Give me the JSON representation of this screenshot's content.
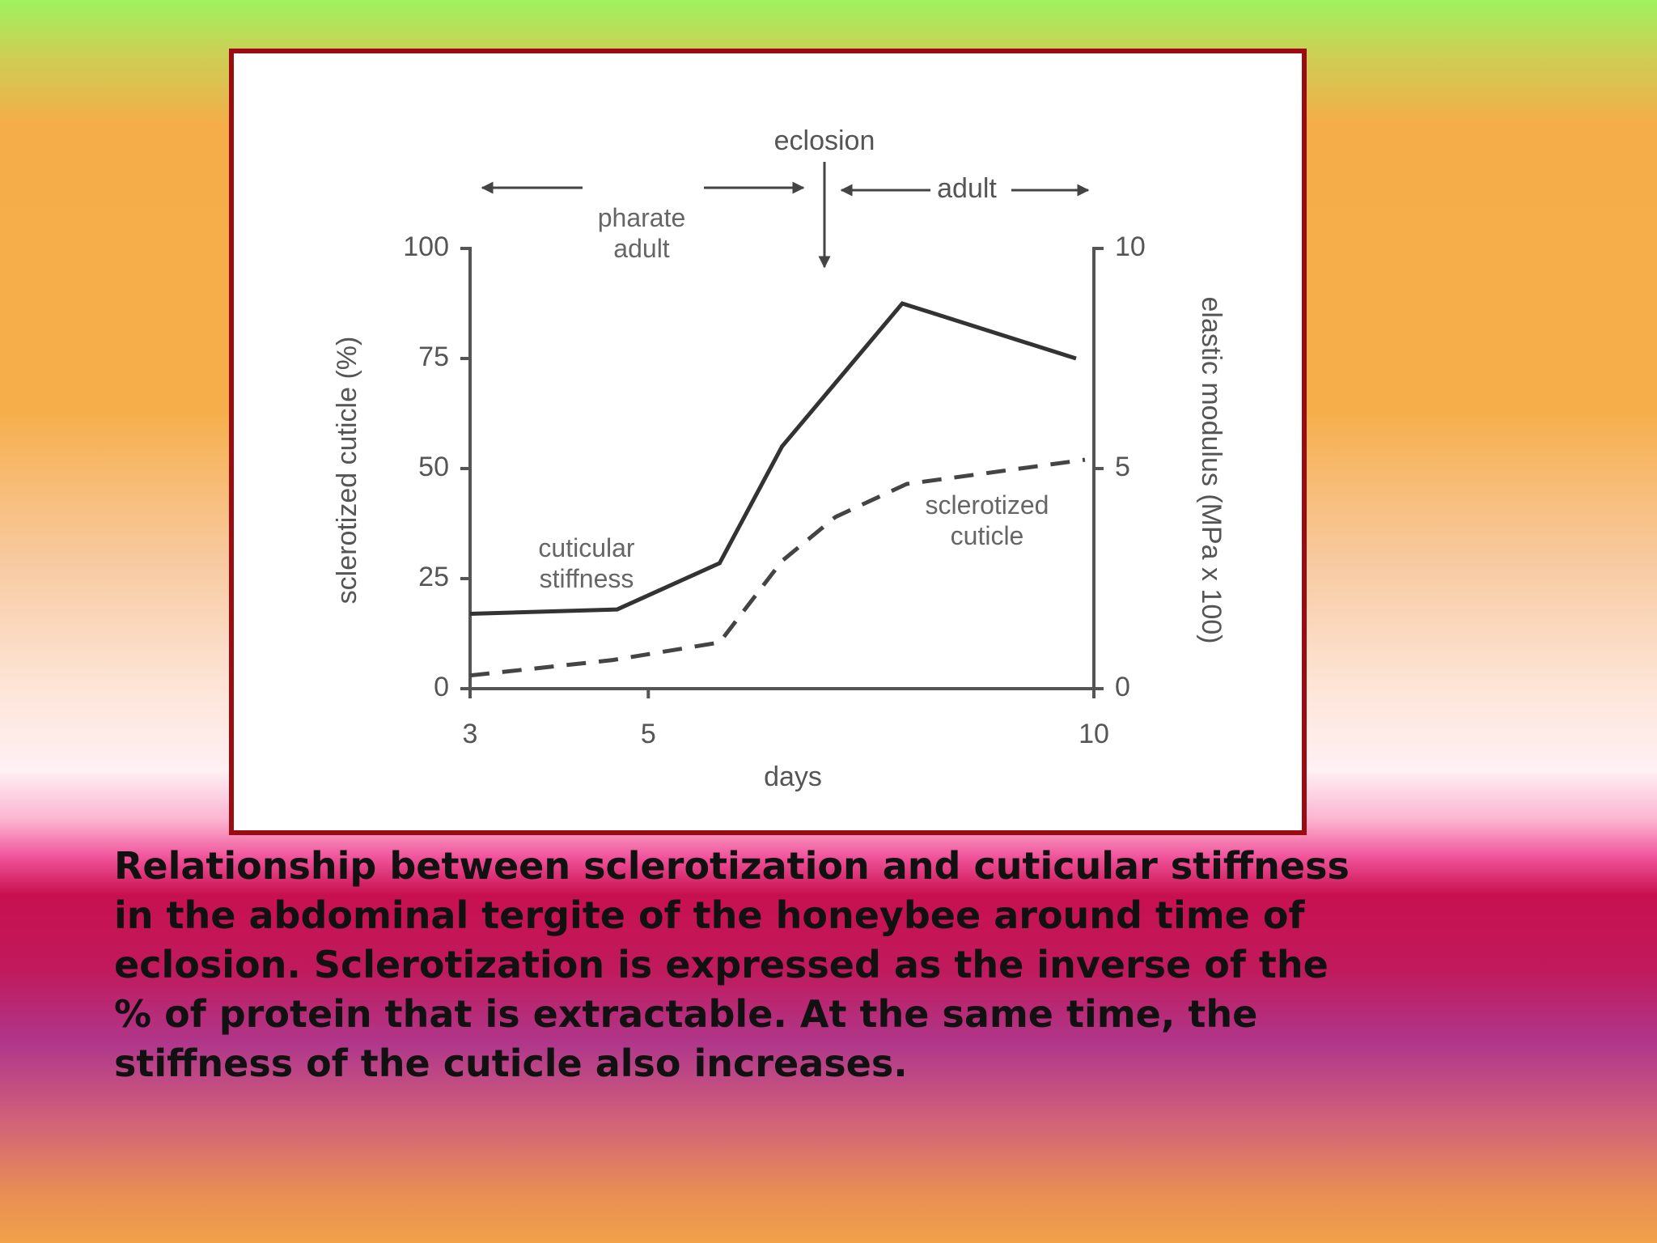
{
  "chart_data": {
    "type": "line",
    "top_labels": {
      "eclosion": "eclosion",
      "pharate": "pharate adult",
      "adult": "adult"
    },
    "xlabel": "days",
    "ylabel": "sclerotized cuticle (%)",
    "y2label": "elastic modulus (MPa x 100)",
    "xlim": [
      3,
      10
    ],
    "xticks": [
      3,
      5,
      10
    ],
    "ylim": [
      0,
      100
    ],
    "yticks": [
      0,
      25,
      50,
      75,
      100
    ],
    "y2lim": [
      0,
      10
    ],
    "y2ticks": [
      0,
      5,
      10
    ],
    "series": [
      {
        "name": "cuticular stiffness",
        "color": "#333333",
        "style": "solid",
        "axis": "y2",
        "x": [
          3,
          4.65,
          5.8,
          6.5,
          7.85,
          9.8
        ],
        "values": [
          1.7,
          1.8,
          2.85,
          5.5,
          8.75,
          7.5
        ]
      },
      {
        "name": "sclerotized cuticle",
        "color": "#444444",
        "style": "dashed",
        "axis": "y",
        "x": [
          3,
          4.6,
          5.8,
          6.5,
          7.1,
          7.9,
          9.9
        ],
        "values": [
          3,
          6.5,
          10.5,
          29,
          39,
          46.5,
          52
        ]
      }
    ]
  },
  "caption": {
    "lines": [
      "Relationship between sclerotization and cuticular stiffness",
      "in the abdominal tergite of the honeybee around time of",
      "eclosion. Sclerotization is expressed as the inverse of the",
      "% of protein that is extractable. At the same time, the",
      "stiffness of the cuticle also increases."
    ]
  }
}
